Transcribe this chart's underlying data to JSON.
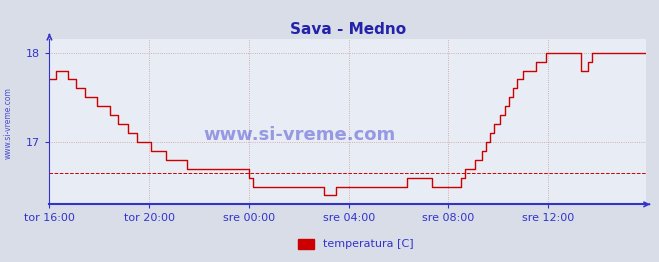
{
  "title": "Sava - Medno",
  "title_color": "#2222aa",
  "title_fontsize": 11,
  "bg_color": "#d8dde8",
  "plot_bg_color": "#e8ecf4",
  "line_color": "#cc0000",
  "line_width": 1.0,
  "grid_color": "#cc9999",
  "grid_style": ":",
  "axis_color": "#3333cc",
  "tick_color": "#3333cc",
  "tick_fontsize": 8,
  "watermark_center": "www.si-vreme.com",
  "watermark_side": "www.si-vreme.com",
  "watermark_color": "#3333cc",
  "legend_label": "temperatura [C]",
  "legend_color": "#cc0000",
  "ylim": [
    16.3,
    18.15
  ],
  "yticks": [
    17.0,
    18.0
  ],
  "avg_line_y": 16.65,
  "avg_line_color": "#cc0000",
  "avg_line_style": "--",
  "x_tick_labels": [
    "tor 16:00",
    "tor 20:00",
    "sre 00:00",
    "sre 04:00",
    "sre 08:00",
    "sre 12:00"
  ],
  "x_tick_positions": [
    0,
    48,
    96,
    144,
    192,
    240
  ],
  "total_points": 288,
  "temperatures": [
    17.7,
    17.7,
    17.7,
    17.8,
    17.8,
    17.8,
    17.8,
    17.8,
    17.8,
    17.7,
    17.7,
    17.7,
    17.7,
    17.6,
    17.6,
    17.6,
    17.6,
    17.5,
    17.5,
    17.5,
    17.5,
    17.5,
    17.5,
    17.4,
    17.4,
    17.4,
    17.4,
    17.4,
    17.4,
    17.3,
    17.3,
    17.3,
    17.3,
    17.2,
    17.2,
    17.2,
    17.2,
    17.2,
    17.1,
    17.1,
    17.1,
    17.1,
    17.0,
    17.0,
    17.0,
    17.0,
    17.0,
    17.0,
    17.0,
    16.9,
    16.9,
    16.9,
    16.9,
    16.9,
    16.9,
    16.9,
    16.8,
    16.8,
    16.8,
    16.8,
    16.8,
    16.8,
    16.8,
    16.8,
    16.8,
    16.8,
    16.7,
    16.7,
    16.7,
    16.7,
    16.7,
    16.7,
    16.7,
    16.7,
    16.7,
    16.7,
    16.7,
    16.7,
    16.7,
    16.7,
    16.7,
    16.7,
    16.7,
    16.7,
    16.7,
    16.7,
    16.7,
    16.7,
    16.7,
    16.7,
    16.7,
    16.7,
    16.7,
    16.7,
    16.7,
    16.7,
    16.6,
    16.6,
    16.5,
    16.5,
    16.5,
    16.5,
    16.5,
    16.5,
    16.5,
    16.5,
    16.5,
    16.5,
    16.5,
    16.5,
    16.5,
    16.5,
    16.5,
    16.5,
    16.5,
    16.5,
    16.5,
    16.5,
    16.5,
    16.5,
    16.5,
    16.5,
    16.5,
    16.5,
    16.5,
    16.5,
    16.5,
    16.5,
    16.5,
    16.5,
    16.5,
    16.5,
    16.4,
    16.4,
    16.4,
    16.4,
    16.4,
    16.4,
    16.5,
    16.5,
    16.5,
    16.5,
    16.5,
    16.5,
    16.5,
    16.5,
    16.5,
    16.5,
    16.5,
    16.5,
    16.5,
    16.5,
    16.5,
    16.5,
    16.5,
    16.5,
    16.5,
    16.5,
    16.5,
    16.5,
    16.5,
    16.5,
    16.5,
    16.5,
    16.5,
    16.5,
    16.5,
    16.5,
    16.5,
    16.5,
    16.5,
    16.5,
    16.6,
    16.6,
    16.6,
    16.6,
    16.6,
    16.6,
    16.6,
    16.6,
    16.6,
    16.6,
    16.6,
    16.6,
    16.5,
    16.5,
    16.5,
    16.5,
    16.5,
    16.5,
    16.5,
    16.5,
    16.5,
    16.5,
    16.5,
    16.5,
    16.5,
    16.5,
    16.6,
    16.6,
    16.7,
    16.7,
    16.7,
    16.7,
    16.7,
    16.8,
    16.8,
    16.8,
    16.9,
    16.9,
    17.0,
    17.0,
    17.1,
    17.1,
    17.2,
    17.2,
    17.2,
    17.3,
    17.3,
    17.4,
    17.4,
    17.5,
    17.5,
    17.6,
    17.6,
    17.7,
    17.7,
    17.7,
    17.8,
    17.8,
    17.8,
    17.8,
    17.8,
    17.8,
    17.9,
    17.9,
    17.9,
    17.9,
    17.9,
    18.0,
    18.0,
    18.0,
    18.0,
    18.0,
    18.0,
    18.0,
    18.0,
    18.0,
    18.0,
    18.0,
    18.0,
    18.0,
    18.0,
    18.0,
    18.0,
    18.0,
    17.8,
    17.8,
    17.8,
    17.9,
    17.9,
    18.0,
    18.0,
    18.0,
    18.0,
    18.0,
    18.0,
    18.0,
    18.0,
    18.0,
    18.0,
    18.0,
    18.0,
    18.0,
    18.0,
    18.0,
    18.0,
    18.0,
    18.0,
    18.0,
    18.0,
    18.0,
    18.0,
    18.0,
    18.0,
    18.0,
    18.0,
    18.0
  ]
}
